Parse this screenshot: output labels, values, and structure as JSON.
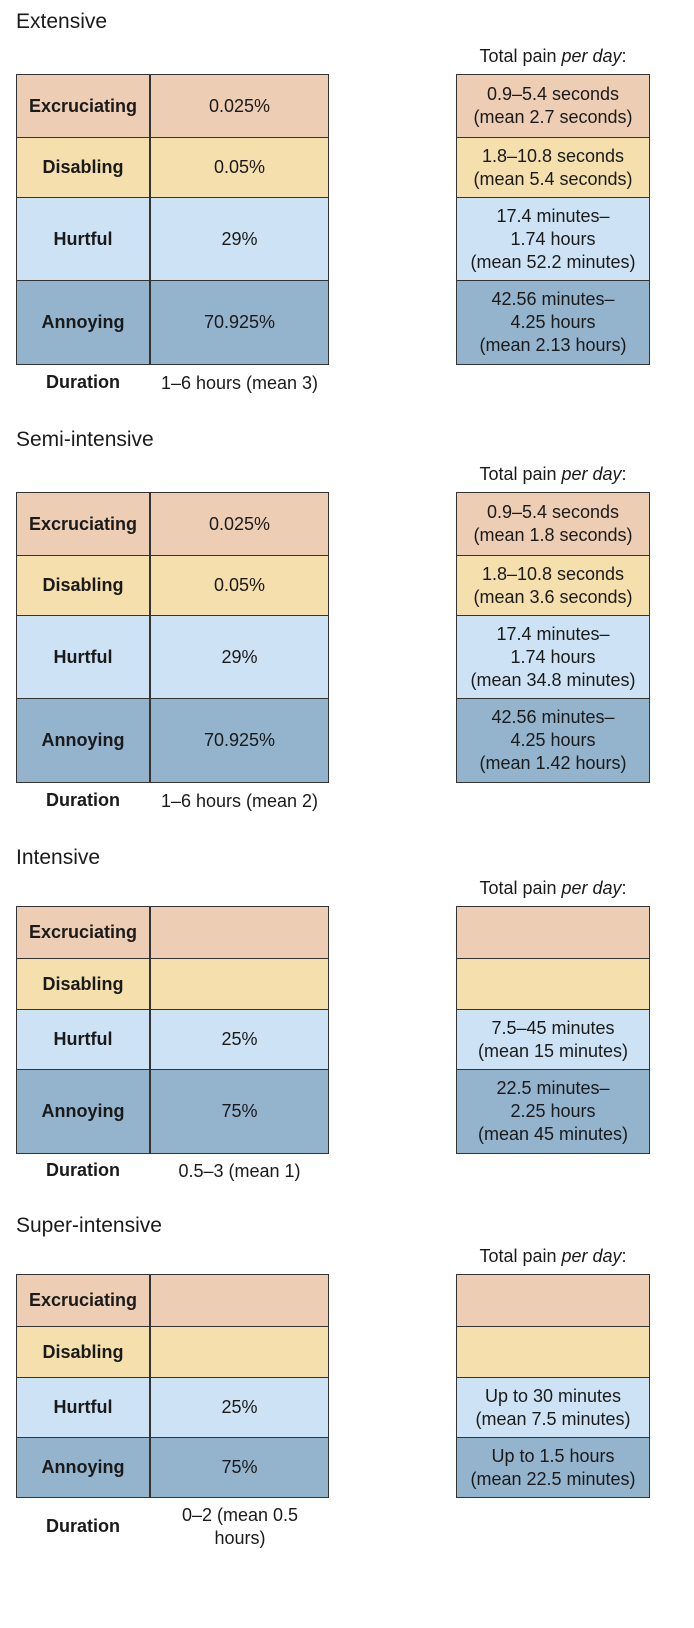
{
  "pain_header": {
    "prefix": "Total pain ",
    "emph": "per day",
    "suffix": ":"
  },
  "row_labels": {
    "excruciating": "Excruciating",
    "disabling": "Disabling",
    "hurtful": "Hurtful",
    "annoying": "Annoying",
    "duration": "Duration"
  },
  "colors": {
    "excruciating": "#edcdb4",
    "disabling": "#f4dfad",
    "hurtful": "#cde3f5",
    "annoying": "#94b3cd"
  },
  "sections": [
    {
      "title": "Extensive",
      "values": {
        "excruciating": "0.025%",
        "disabling": "0.05%",
        "hurtful": "29%",
        "annoying": "70.925%"
      },
      "duration": "1–6 hours (mean 3)",
      "pain": {
        "excruciating": [
          "0.9–5.4 seconds",
          "(mean 2.7 seconds)"
        ],
        "disabling": [
          "1.8–10.8 seconds",
          "(mean 5.4 seconds)"
        ],
        "hurtful": [
          "17.4 minutes–",
          "1.74 hours",
          "(mean 52.2 minutes)"
        ],
        "annoying": [
          "42.56 minutes–",
          "4.25 hours",
          "(mean 2.13 hours)"
        ]
      }
    },
    {
      "title": "Semi-intensive",
      "values": {
        "excruciating": "0.025%",
        "disabling": "0.05%",
        "hurtful": "29%",
        "annoying": "70.925%"
      },
      "duration": "1–6 hours (mean 2)",
      "pain": {
        "excruciating": [
          "0.9–5.4 seconds",
          "(mean 1.8 seconds)"
        ],
        "disabling": [
          "1.8–10.8 seconds",
          "(mean 3.6 seconds)"
        ],
        "hurtful": [
          "17.4 minutes–",
          "1.74 hours",
          "(mean 34.8 minutes)"
        ],
        "annoying": [
          "42.56 minutes–",
          "4.25 hours",
          "(mean 1.42 hours)"
        ]
      }
    },
    {
      "title": "Intensive",
      "values": {
        "excruciating": "",
        "disabling": "",
        "hurtful": "25%",
        "annoying": "75%"
      },
      "duration": "0.5–3 (mean 1)",
      "pain": {
        "excruciating": [],
        "disabling": [],
        "hurtful": [
          "7.5–45 minutes",
          "(mean 15 minutes)"
        ],
        "annoying": [
          "22.5 minutes–",
          "2.25 hours",
          "(mean 45 minutes)"
        ]
      }
    },
    {
      "title": "Super-intensive",
      "values": {
        "excruciating": "",
        "disabling": "",
        "hurtful": "25%",
        "annoying": "75%"
      },
      "duration": "0–2 (mean 0.5 hours)",
      "pain": {
        "excruciating": [],
        "disabling": [],
        "hurtful": [
          "Up to 30 minutes",
          "(mean 7.5 minutes)"
        ],
        "annoying": [
          "Up to 1.5 hours",
          "(mean 22.5 minutes)"
        ]
      }
    }
  ]
}
